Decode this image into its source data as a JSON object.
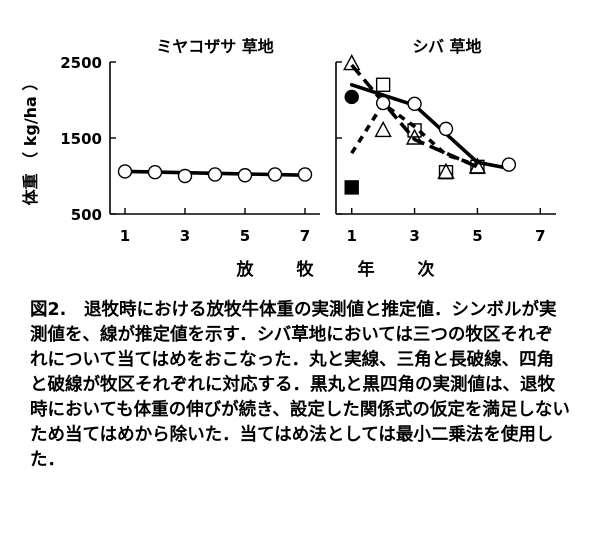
{
  "chart_data": [
    {
      "type": "line",
      "title": "ミヤコザサ 草地",
      "ylabel": "体重 （ kg/ha ）",
      "xlabel": "放 牧 年 次",
      "ylim": [
        500,
        2500
      ],
      "yticks": [
        500,
        1500,
        2500
      ],
      "xlim": [
        0.5,
        7.5
      ],
      "xticks": [
        1,
        3,
        5,
        7
      ],
      "series": [
        {
          "marker": "circle-open",
          "x": [
            1,
            2,
            3,
            4,
            5,
            6,
            7
          ],
          "y": [
            1060,
            1050,
            1000,
            1020,
            1010,
            1020,
            1020
          ]
        }
      ],
      "fits": [
        {
          "style": "solid",
          "x": [
            1,
            7
          ],
          "y": [
            1060,
            1010
          ]
        }
      ]
    },
    {
      "type": "line",
      "title": "シバ 草地",
      "ylim": [
        500,
        2500
      ],
      "xlim": [
        0.5,
        7.5
      ],
      "xticks": [
        1,
        3,
        5,
        7
      ],
      "series": [
        {
          "marker": "circle-open",
          "x": [
            2,
            3,
            4,
            6
          ],
          "y": [
            1960,
            1950,
            1620,
            1150
          ]
        },
        {
          "marker": "circle-filled",
          "x": [
            1
          ],
          "y": [
            2040
          ]
        },
        {
          "marker": "triangle-open",
          "x": [
            1,
            2,
            3,
            4,
            5
          ],
          "y": [
            2480,
            1600,
            1500,
            1050,
            1120
          ]
        },
        {
          "marker": "square-open",
          "x": [
            2,
            3,
            4,
            5
          ],
          "y": [
            2200,
            1600,
            1050,
            1120
          ]
        },
        {
          "marker": "square-filled",
          "x": [
            1
          ],
          "y": [
            850
          ]
        }
      ],
      "fits": [
        {
          "style": "solid",
          "x": [
            1,
            3,
            5,
            6
          ],
          "y": [
            2200,
            1930,
            1180,
            1100
          ]
        },
        {
          "style": "long-dash",
          "x": [
            1,
            3,
            5
          ],
          "y": [
            2460,
            1480,
            1120
          ]
        },
        {
          "style": "short-dash",
          "x": [
            1,
            2,
            3,
            4,
            5
          ],
          "y": [
            1300,
            1950,
            1650,
            1280,
            1140
          ]
        }
      ]
    }
  ],
  "caption": {
    "label": "図2.",
    "text": "退牧時における放牧牛体重の実測値と推定値．シンボルが実測値を、線が推定値を示す．シバ草地においては三つの牧区それぞれについて当てはめをおこなった．丸と実線、三角と長破線、四角と破線が牧区それぞれに対応する．黒丸と黒四角の実測値は、退牧時においても体重の伸びが続き、設定した関係式の仮定を満足しないため当てはめから除いた．当てはめ法としては最小二乗法を使用した．"
  }
}
